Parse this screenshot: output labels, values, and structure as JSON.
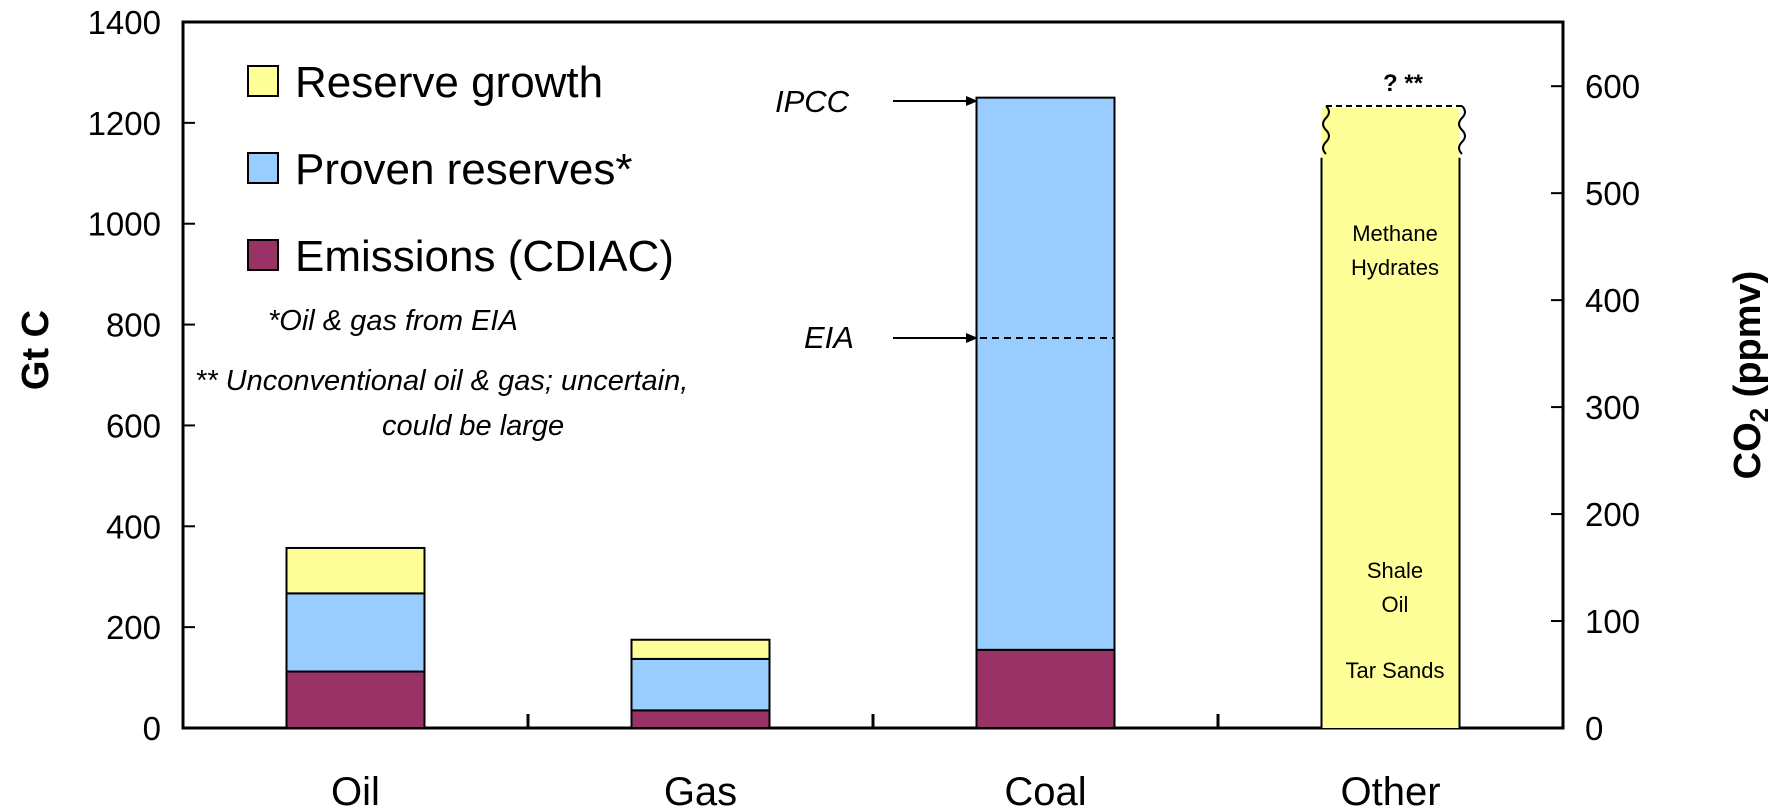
{
  "chart_data": {
    "type": "bar",
    "stacked": true,
    "categories": [
      "Oil",
      "Gas",
      "Coal",
      "Other"
    ],
    "series": [
      {
        "name": "Emissions (CDIAC)",
        "color": "#993366",
        "values": [
          112,
          35,
          155,
          0
        ]
      },
      {
        "name": "Proven reserves*",
        "color": "#99ccff",
        "values": [
          155,
          102,
          1095,
          0
        ]
      },
      {
        "name": "Reserve growth",
        "color": "#ffff99",
        "values": [
          90,
          38,
          0,
          1230
        ]
      }
    ],
    "ylim": [
      0,
      1400
    ],
    "y_ticks": [
      "0",
      "200",
      "400",
      "600",
      "800",
      "1000",
      "1200",
      "1400"
    ],
    "ylabel": "Gt C",
    "y2lim": [
      0,
      660
    ],
    "y2_ticks": [
      "0",
      "100",
      "200",
      "300",
      "400",
      "500",
      "600"
    ],
    "y2label": "CO",
    "y2label_sub": "2",
    "y2label_unit": " (ppmv)",
    "legend_order": [
      "Reserve growth",
      "Proven reserves*",
      "Emissions (CDIAC)"
    ],
    "legend_position": "top-left",
    "notes": [
      "*Oil & gas from EIA",
      "** Unconventional oil & gas; uncertain,",
      "could be large"
    ],
    "annotations": [
      {
        "label": "IPCC",
        "category": "Coal",
        "y": 1250
      },
      {
        "label": "EIA",
        "category": "Coal",
        "y": 770
      }
    ],
    "other_bar": {
      "uncertain_mark": "? **",
      "labels": [
        "Methane",
        "Hydrates",
        "Shale",
        "Oil",
        "Tar Sands"
      ]
    },
    "grid": false
  }
}
